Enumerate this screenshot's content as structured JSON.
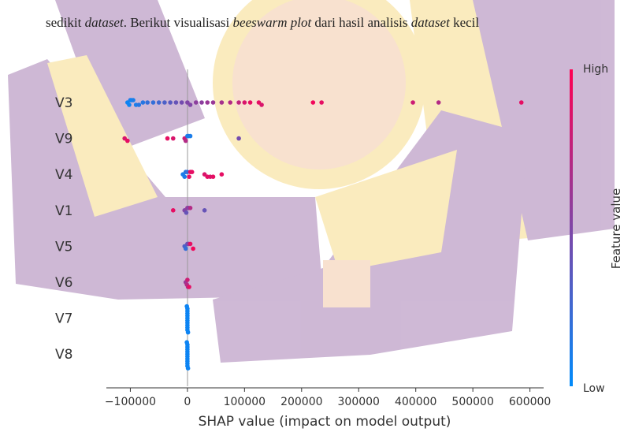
{
  "paragraph": [
    {
      "text": "sedikit ",
      "italic": false
    },
    {
      "text": "dataset",
      "italic": true
    },
    {
      "text": ". Berikut visualisasi ",
      "italic": false
    },
    {
      "text": "beeswarm plot",
      "italic": true
    },
    {
      "text": " dari hasil analisis ",
      "italic": false
    },
    {
      "text": "dataset",
      "italic": true
    },
    {
      "text": " kecil",
      "italic": false
    }
  ],
  "chart_data": {
    "type": "beeswarm",
    "xlabel": "SHAP value (impact on model output)",
    "colorbar_label": "Feature value",
    "colorbar_high": "High",
    "colorbar_low": "Low",
    "colormap": [
      "#008bfb",
      "#ff0052"
    ],
    "xlim": [
      -142000,
      624000
    ],
    "xticks": [
      {
        "value": -100000,
        "label": "−100000"
      },
      0,
      100000,
      200000,
      300000,
      400000,
      500000,
      600000
    ],
    "rows": [
      {
        "name": "V3",
        "x": [
          -105000,
          -102000,
          -100000,
          -98000,
          -95000,
          -90000,
          -85000,
          -78000,
          -70000,
          -60000,
          -50000,
          -40000,
          -30000,
          -20000,
          -10000,
          0,
          5000,
          15000,
          25000,
          35000,
          45000,
          60000,
          75000,
          90000,
          100000,
          110000,
          125000,
          130000,
          220000,
          235000,
          395000,
          440000,
          585000
        ],
        "feature": [
          0.05,
          0.05,
          0.1,
          0.05,
          0.1,
          0.1,
          0.15,
          0.15,
          0.2,
          0.2,
          0.25,
          0.3,
          0.35,
          0.4,
          0.45,
          0.5,
          0.5,
          0.55,
          0.55,
          0.6,
          0.6,
          0.65,
          0.7,
          0.75,
          0.85,
          0.9,
          0.9,
          0.85,
          0.95,
          0.9,
          0.8,
          0.7,
          0.9
        ]
      },
      {
        "name": "V9",
        "x": [
          -110000,
          -105000,
          -35000,
          -25000,
          -5000,
          -3000,
          0,
          2000,
          5000,
          90000
        ],
        "feature": [
          0.85,
          0.9,
          0.9,
          0.85,
          0.8,
          0.7,
          0.1,
          0.1,
          0.1,
          0.45
        ]
      },
      {
        "name": "V4",
        "x": [
          -8000,
          -5000,
          -3000,
          0,
          3000,
          5000,
          8000,
          30000,
          35000,
          40000,
          45000,
          60000
        ],
        "feature": [
          0.1,
          0.1,
          0.15,
          0.2,
          0.9,
          0.9,
          0.9,
          0.85,
          0.9,
          0.85,
          0.9,
          0.9
        ]
      },
      {
        "name": "V1",
        "x": [
          -25000,
          -5000,
          -2000,
          0,
          2000,
          5000,
          30000
        ],
        "feature": [
          0.9,
          0.5,
          0.4,
          0.6,
          0.5,
          0.7,
          0.4
        ]
      },
      {
        "name": "V5",
        "x": [
          -5000,
          -3000,
          0,
          2000,
          5000,
          10000
        ],
        "feature": [
          0.3,
          0.2,
          0.4,
          0.5,
          0.9,
          0.95
        ]
      },
      {
        "name": "V6",
        "x": [
          -3000,
          -1000,
          0,
          1000,
          3000
        ],
        "feature": [
          0.6,
          0.7,
          0.8,
          0.7,
          0.9
        ]
      },
      {
        "name": "V7",
        "x": [
          0,
          0,
          0,
          0,
          0,
          0,
          0,
          0,
          0,
          0,
          -1000,
          1000
        ],
        "feature": [
          0.05,
          0.05,
          0.05,
          0.05,
          0.05,
          0.05,
          0.05,
          0.05,
          0.05,
          0.05,
          0.05,
          0.05
        ]
      },
      {
        "name": "V8",
        "x": [
          0,
          0,
          0,
          0,
          0,
          0,
          0,
          0,
          0,
          0,
          -1000,
          1000
        ],
        "feature": [
          0.05,
          0.05,
          0.05,
          0.05,
          0.05,
          0.05,
          0.05,
          0.05,
          0.05,
          0.05,
          0.05,
          0.05
        ]
      }
    ]
  }
}
